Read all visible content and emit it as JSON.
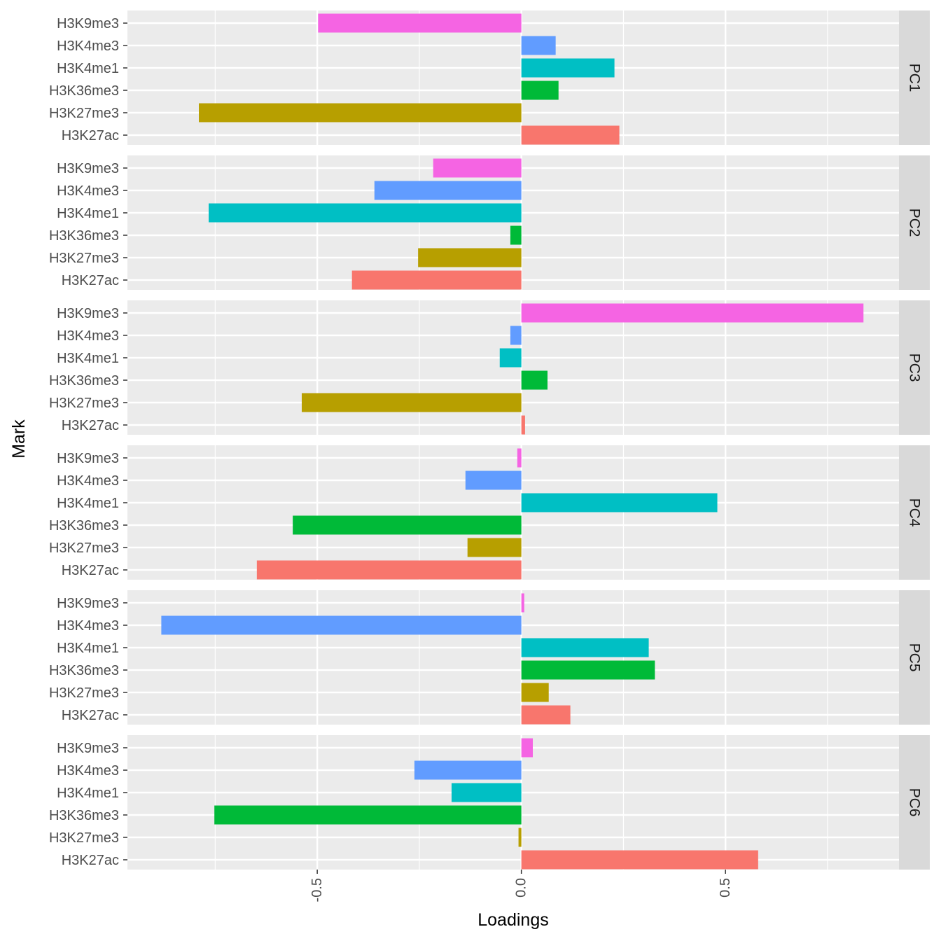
{
  "chart_data": {
    "type": "bar",
    "orientation": "horizontal",
    "xlabel": "Loadings",
    "ylabel": "Mark",
    "xlim": [
      -0.965,
      0.925
    ],
    "x_ticks": [
      "-0.5",
      "0.0",
      "0.5"
    ],
    "x_tick_values": [
      -0.5,
      0.0,
      0.5
    ],
    "grid": true,
    "categories": [
      "H3K9me3",
      "H3K4me3",
      "H3K4me1",
      "H3K36me3",
      "H3K27me3",
      "H3K27ac"
    ],
    "colors": {
      "H3K9me3": "#F564E3",
      "H3K4me3": "#619CFF",
      "H3K4me1": "#00BFC4",
      "H3K36me3": "#00BA38",
      "H3K27me3": "#B79F00",
      "H3K27ac": "#F8766D"
    },
    "panels": [
      {
        "name": "PC1",
        "values": [
          -0.498,
          0.084,
          0.228,
          0.091,
          -0.79,
          0.24
        ]
      },
      {
        "name": "PC2",
        "values": [
          -0.216,
          -0.36,
          -0.766,
          -0.027,
          -0.253,
          -0.415
        ]
      },
      {
        "name": "PC3",
        "values": [
          0.838,
          -0.027,
          -0.053,
          0.064,
          -0.538,
          0.009
        ]
      },
      {
        "name": "PC4",
        "values": [
          -0.01,
          -0.137,
          0.48,
          -0.56,
          -0.132,
          -0.648
        ]
      },
      {
        "name": "PC5",
        "values": [
          0.007,
          -0.882,
          0.312,
          0.327,
          0.067,
          0.12
        ]
      },
      {
        "name": "PC6",
        "values": [
          0.028,
          -0.262,
          -0.171,
          -0.752,
          -0.007,
          0.58
        ]
      }
    ]
  }
}
